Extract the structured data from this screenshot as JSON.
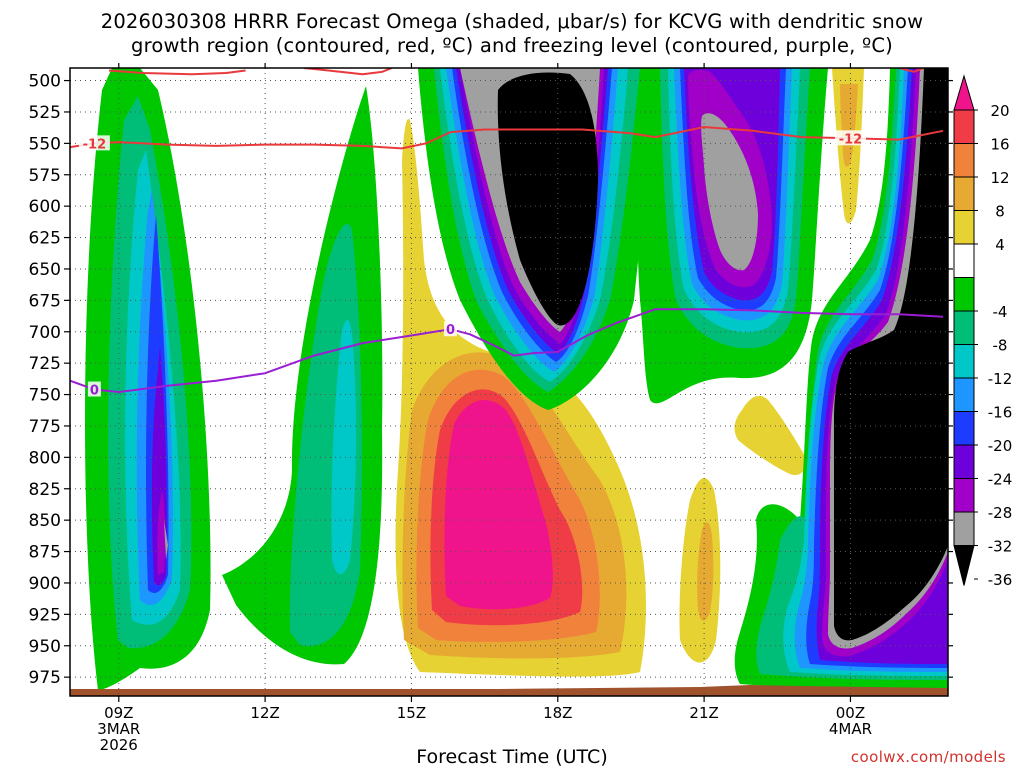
{
  "chart_data": {
    "type": "heatmap",
    "title": "2026030308 HRRR Forecast Omega (shaded, μbar/s) for KCVG with dendritic snow growth region (contoured, red, ºC) and freezing level (contoured, purple, ºC)",
    "title_lines": [
      "2026030308 HRRR Forecast Omega (shaded, μbar/s) for KCVG with dendritic snow",
      "growth region (contoured, red, ºC) and freezing level (contoured, purple, ºC)"
    ],
    "xlabel": "Forecast Time (UTC)",
    "ylabel": "",
    "credit": "coolwx.com/models",
    "x_ticks": [
      {
        "hour": 9,
        "lines": [
          "09Z",
          "3MAR",
          "2026"
        ]
      },
      {
        "hour": 12,
        "lines": [
          "12Z"
        ]
      },
      {
        "hour": 15,
        "lines": [
          "15Z"
        ]
      },
      {
        "hour": 18,
        "lines": [
          "18Z"
        ]
      },
      {
        "hour": 21,
        "lines": [
          "21Z"
        ]
      },
      {
        "hour": 24,
        "lines": [
          "00Z",
          "4MAR"
        ]
      }
    ],
    "xlim_hours": [
      8.0,
      26.0
    ],
    "y_ticks": [
      500,
      525,
      550,
      575,
      600,
      625,
      650,
      675,
      700,
      725,
      750,
      775,
      800,
      825,
      850,
      875,
      900,
      925,
      950,
      975
    ],
    "ylim_hpa": [
      490,
      990
    ],
    "grid": true,
    "colorbar": {
      "labels": [
        "20",
        "16",
        "12",
        "8",
        "4",
        "-4",
        "-8",
        "-12",
        "-16",
        "-20",
        "-24",
        "-28",
        "-32",
        "-36"
      ],
      "bands": [
        {
          "range": [
            16,
            20
          ],
          "color": "#f03c46"
        },
        {
          "range": [
            12,
            16
          ],
          "color": "#f0823c"
        },
        {
          "range": [
            8,
            12
          ],
          "color": "#e6aa32"
        },
        {
          "range": [
            4,
            8
          ],
          "color": "#e6d232"
        },
        {
          "range": [
            -4,
            4
          ],
          "color": "#ffffff"
        },
        {
          "range": [
            -8,
            -4
          ],
          "color": "#00c800"
        },
        {
          "range": [
            -12,
            -8
          ],
          "color": "#00be78"
        },
        {
          "range": [
            -16,
            -12
          ],
          "color": "#00c8c8"
        },
        {
          "range": [
            -20,
            -16
          ],
          "color": "#1e96ff"
        },
        {
          "range": [
            -24,
            -20
          ],
          "color": "#1e3cff"
        },
        {
          "range": [
            -28,
            -24
          ],
          "color": "#6e00dc"
        },
        {
          "range": [
            -32,
            -28
          ],
          "color": "#a000c8"
        },
        {
          "range": [
            -36,
            -32
          ],
          "color": "#a0a0a0"
        }
      ],
      "over_color": "#f0148c",
      "under_color": "#000000"
    },
    "contours": [
      {
        "field": "temperature",
        "level": -12,
        "label": "-12",
        "color": "#e8393c",
        "points": [
          [
            8.0,
            553
          ],
          [
            8.5,
            550
          ],
          [
            9.0,
            549
          ],
          [
            10.0,
            551
          ],
          [
            11.0,
            552
          ],
          [
            12.0,
            551
          ],
          [
            13.0,
            551
          ],
          [
            14.0,
            552
          ],
          [
            14.8,
            554
          ],
          [
            15.3,
            550
          ],
          [
            15.8,
            541
          ],
          [
            16.5,
            539
          ],
          [
            17.5,
            539
          ],
          [
            18.5,
            539
          ],
          [
            19.5,
            542
          ],
          [
            20.0,
            545
          ],
          [
            20.5,
            541
          ],
          [
            21.0,
            537
          ],
          [
            22.0,
            540
          ],
          [
            23.0,
            545
          ],
          [
            24.0,
            546
          ],
          [
            25.0,
            547
          ],
          [
            25.9,
            540
          ]
        ]
      },
      {
        "field": "temperature",
        "level": -12,
        "label": "",
        "color": "#e8393c",
        "points": [
          [
            8.8,
            492
          ],
          [
            9.5,
            494
          ],
          [
            10.5,
            495
          ],
          [
            11.2,
            494
          ],
          [
            11.6,
            492
          ]
        ]
      },
      {
        "field": "temperature",
        "level": -12,
        "label": "",
        "color": "#e8393c",
        "points": [
          [
            12.8,
            490
          ],
          [
            13.3,
            492
          ],
          [
            14.0,
            495
          ],
          [
            14.4,
            493
          ],
          [
            14.6,
            490
          ]
        ]
      },
      {
        "field": "temperature",
        "level": -12,
        "label": "",
        "color": "#e8393c",
        "points": [
          [
            25.0,
            490
          ],
          [
            25.3,
            493
          ],
          [
            25.5,
            490
          ]
        ]
      },
      {
        "field": "freezing_level",
        "level": 0,
        "label": "0",
        "color": "#9a1ed2",
        "points": [
          [
            8.0,
            739
          ],
          [
            8.5,
            746
          ],
          [
            9.0,
            748
          ],
          [
            10.0,
            743
          ],
          [
            11.0,
            739
          ],
          [
            12.0,
            733
          ],
          [
            13.0,
            719
          ],
          [
            14.0,
            709
          ],
          [
            15.0,
            703
          ],
          [
            15.8,
            698
          ],
          [
            16.2,
            702
          ],
          [
            16.7,
            711
          ],
          [
            17.1,
            719
          ],
          [
            17.5,
            717
          ],
          [
            18.0,
            716
          ],
          [
            18.6,
            703
          ],
          [
            19.2,
            693
          ],
          [
            20.0,
            682
          ],
          [
            21.0,
            682
          ],
          [
            22.0,
            683
          ],
          [
            23.0,
            685
          ],
          [
            24.0,
            686
          ],
          [
            25.0,
            686
          ],
          [
            25.9,
            688
          ]
        ]
      }
    ]
  }
}
